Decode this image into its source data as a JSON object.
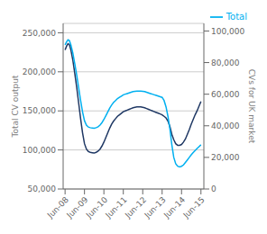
{
  "chart_data": {
    "type": "line",
    "ylabel": "Total CV output",
    "y2label": "CVs for UK market",
    "x": [
      0.0,
      0.08,
      0.15,
      0.22,
      0.3,
      0.4,
      0.5,
      0.6,
      0.7,
      0.8,
      0.9,
      1.0,
      1.1,
      1.2,
      1.3,
      1.4,
      1.5,
      1.6,
      1.7,
      1.8,
      1.9,
      2.0,
      2.1,
      2.2,
      2.3,
      2.4,
      2.5,
      2.6,
      2.7,
      2.8,
      2.9,
      3.0,
      3.1,
      3.2,
      3.3,
      3.4,
      3.5,
      3.6,
      3.7,
      3.8,
      3.9,
      4.0,
      4.1,
      4.2,
      4.3,
      4.4,
      4.5,
      4.6,
      4.7,
      4.8,
      4.9,
      5.0,
      5.1,
      5.2,
      5.3,
      5.4,
      5.5,
      5.6,
      5.7,
      5.8,
      5.9,
      6.0,
      6.1,
      6.2,
      6.3,
      6.4,
      6.5,
      6.6,
      6.7,
      6.8,
      6.9,
      7.0
    ],
    "xlim": [
      -0.1,
      7.15
    ],
    "xticks": [
      {
        "value": 0,
        "label": "Jun-08"
      },
      {
        "value": 1,
        "label": "Jun-09"
      },
      {
        "value": 2,
        "label": "Jun-10"
      },
      {
        "value": 3,
        "label": "Jun-11"
      },
      {
        "value": 4,
        "label": "Jun-12"
      },
      {
        "value": 5,
        "label": "Jun-13"
      },
      {
        "value": 6,
        "label": "Jun-14"
      },
      {
        "value": 7,
        "label": "Jun-15"
      }
    ],
    "ylim": [
      50000,
      262000
    ],
    "yticks": [
      {
        "value": 50000,
        "label": "50,000"
      },
      {
        "value": 100000,
        "label": "100,000"
      },
      {
        "value": 150000,
        "label": "150,000"
      },
      {
        "value": 200000,
        "label": "200,000"
      },
      {
        "value": 250000,
        "label": "250,000"
      }
    ],
    "y2lim": [
      0,
      104800
    ],
    "y2ticks": [
      0,
      {
        "value": 20000,
        "label": "20,000"
      },
      {
        "value": 40000,
        "label": "40,000"
      },
      {
        "value": 60000,
        "label": "60,000"
      },
      {
        "value": 80000,
        "label": "80,000"
      },
      {
        "value": 100000,
        "label": "100,000"
      }
    ],
    "grid": true,
    "legend": "upper right",
    "series": [
      {
        "color": "#1F3864",
        "values": [
          228000,
          233000,
          236000,
          235000,
          228000,
          215000,
          198000,
          180000,
          160000,
          140000,
          122000,
          108000,
          101000,
          98000,
          97000,
          96500,
          96000,
          97000,
          98500,
          101000,
          105000,
          110000,
          116000,
          122000,
          128000,
          133000,
          137000,
          140000,
          143000,
          145000,
          147000,
          149000,
          150000,
          151000,
          152000,
          153000,
          154000,
          154500,
          155000,
          155000,
          155000,
          154500,
          154000,
          153000,
          152000,
          151000,
          150000,
          149000,
          148000,
          147000,
          146000,
          145000,
          143000,
          141000,
          137000,
          130000,
          120000,
          113000,
          108000,
          106000,
          106000,
          107000,
          110000,
          114000,
          120000,
          126000,
          133000,
          139000,
          145000,
          150000,
          156000,
          162000
        ]
      },
      {
        "name": "Total",
        "color": "#00B0F0",
        "axis": "y2",
        "values": [
          91200,
          93200,
          94400,
          94000,
          91200,
          86000,
          79200,
          72000,
          64000,
          56000,
          48800,
          43200,
          40400,
          39200,
          38800,
          38600,
          38400,
          38800,
          39400,
          40400,
          42000,
          44000,
          46400,
          48800,
          51200,
          53200,
          54800,
          56000,
          57200,
          58000,
          58800,
          59600,
          60000,
          60400,
          60800,
          61200,
          61600,
          61800,
          62000,
          62000,
          62000,
          61800,
          61600,
          61200,
          60800,
          60400,
          60000,
          59600,
          59200,
          58800,
          58400,
          58000,
          56000,
          52000,
          46000,
          38000,
          28000,
          20000,
          16000,
          14400,
          14000,
          14400,
          15200,
          16800,
          18400,
          20000,
          21600,
          23000,
          24400,
          25600,
          26800,
          28000
        ]
      }
    ]
  }
}
